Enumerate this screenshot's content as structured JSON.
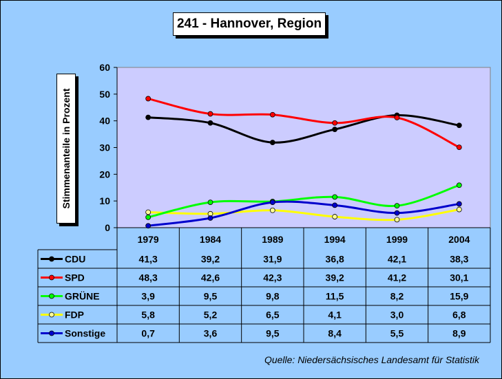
{
  "chart_data": {
    "type": "line",
    "title": "241 - Hannover, Region",
    "ylabel": "Stimmenanteile in Prozent",
    "xlabel": "",
    "categories": [
      "1979",
      "1984",
      "1989",
      "1994",
      "1999",
      "2004"
    ],
    "ylim": [
      0,
      60
    ],
    "yticks": [
      "0",
      "10",
      "20",
      "30",
      "40",
      "50",
      "60"
    ],
    "plot_background": "#ccccff",
    "grid": "off",
    "legend": "data table below plot",
    "series": [
      {
        "name": "CDU",
        "color": "#000000",
        "marker": "#000000",
        "values": [
          41.3,
          39.2,
          31.9,
          36.8,
          42.1,
          38.3
        ],
        "labels": [
          "41,3",
          "39,2",
          "31,9",
          "36,8",
          "42,1",
          "38,3"
        ]
      },
      {
        "name": "SPD",
        "color": "#ff0000",
        "marker": "#ff0000",
        "values": [
          48.3,
          42.6,
          42.3,
          39.2,
          41.2,
          30.1
        ],
        "labels": [
          "48,3",
          "42,6",
          "42,3",
          "39,2",
          "41,2",
          "30,1"
        ]
      },
      {
        "name": "GRÜNE",
        "color": "#00ff00",
        "marker": "#00ff00",
        "values": [
          3.9,
          9.5,
          9.8,
          11.5,
          8.2,
          15.9
        ],
        "labels": [
          "3,9",
          "9,5",
          "9,8",
          "11,5",
          "8,2",
          "15,9"
        ]
      },
      {
        "name": "FDP",
        "color": "#ffff00",
        "marker": "#ffff99",
        "values": [
          5.8,
          5.2,
          6.5,
          4.1,
          3.0,
          6.8
        ],
        "labels": [
          "5,8",
          "5,2",
          "6,5",
          "4,1",
          "3,0",
          "6,8"
        ]
      },
      {
        "name": "Sonstige",
        "color": "#0000cc",
        "marker": "#0000cc",
        "values": [
          0.7,
          3.6,
          9.5,
          8.4,
          5.5,
          8.9
        ],
        "labels": [
          "0,7",
          "3,6",
          "9,5",
          "8,4",
          "5,5",
          "8,9"
        ]
      }
    ]
  },
  "source": "Quelle: Niedersächsisches Landesamt für Statistik"
}
